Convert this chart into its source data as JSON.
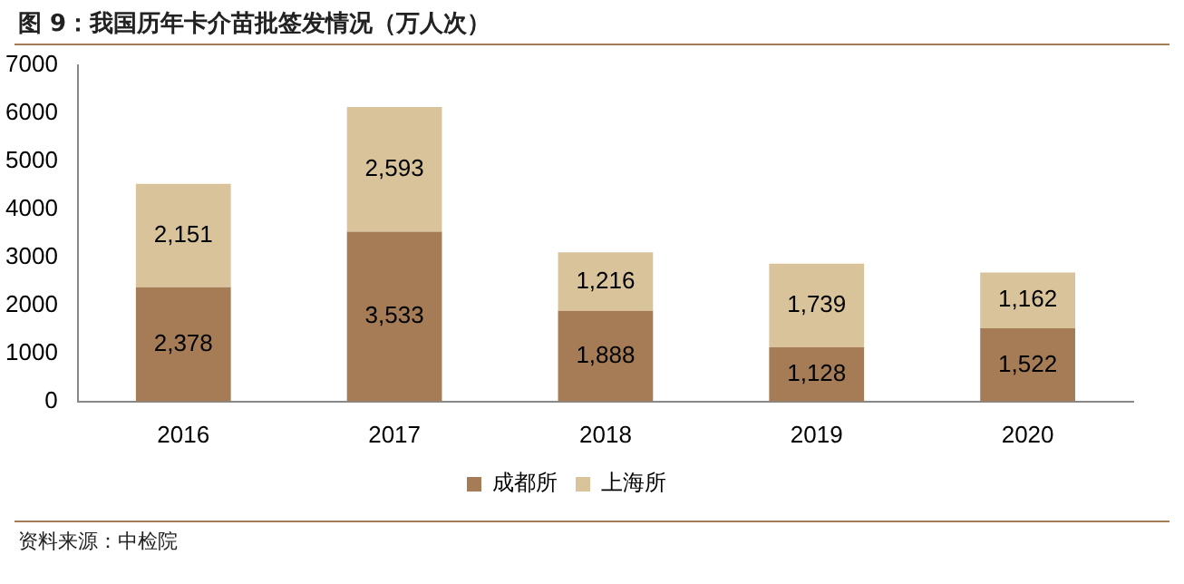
{
  "chart_data": {
    "type": "bar",
    "title": "图 9：我国历年卡介苗批签发情况（万人次）",
    "categories": [
      "2016",
      "2017",
      "2018",
      "2019",
      "2020"
    ],
    "series": [
      {
        "name": "成都所",
        "color": "#a57c55",
        "values": [
          2378,
          3533,
          1888,
          1128,
          1522
        ],
        "value_labels": [
          "2,378",
          "3,533",
          "1,888",
          "1,128",
          "1,522"
        ]
      },
      {
        "name": "上海所",
        "color": "#d9c39b",
        "values": [
          2151,
          2593,
          1216,
          1739,
          1162
        ],
        "value_labels": [
          "2,151",
          "2,593",
          "1,216",
          "1,739",
          "1,162"
        ]
      }
    ],
    "stacked": true,
    "ylim": [
      0,
      7000
    ],
    "yticks": [
      0,
      1000,
      2000,
      3000,
      4000,
      5000,
      6000,
      7000
    ],
    "grid": false,
    "legend": "bottom",
    "annotations": [
      "资料来源：中检院"
    ]
  }
}
